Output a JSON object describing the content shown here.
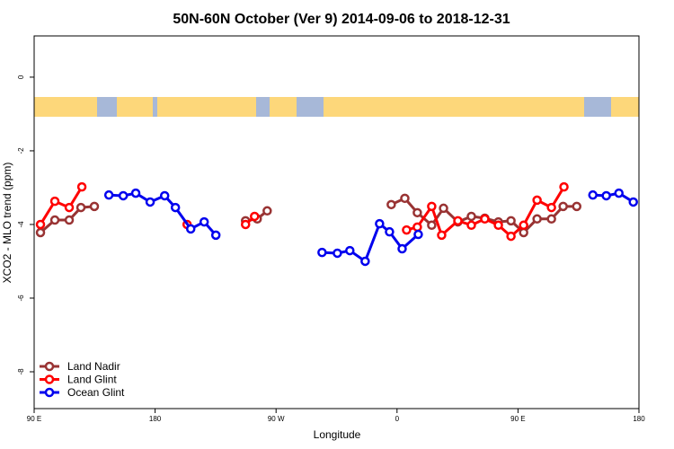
{
  "chart_data": {
    "type": "line",
    "title": "50N-60N October (Ver 9)   2014-09-06 to 2018-12-31",
    "x_label": "Longitude",
    "y_label": "XCO2 - MLO trend (ppm)",
    "xlim": [
      90,
      540
    ],
    "ylim": [
      -9,
      1.12
    ],
    "xticks": [
      {
        "value": 90,
        "label": "90 E"
      },
      180,
      {
        "value": 270,
        "label": "90 W"
      },
      {
        "value": 360,
        "label": "0"
      },
      {
        "value": 450,
        "label": "90 E"
      },
      {
        "value": 540,
        "label": "180"
      }
    ],
    "yticks": [
      0,
      -2,
      -4,
      -6,
      -8
    ],
    "legend": "bottom-left",
    "series": [
      {
        "name": "Land Nadir",
        "color": "#993333",
        "x": [
          94.7,
          105.4,
          116.1,
          124.8,
          134.8,
          null,
          247.3,
          256.0,
          263.4,
          null,
          355.7,
          365.8,
          375.1,
          385.8,
          394.6,
          405.3,
          415.3,
          425.3,
          435.4,
          444.8,
          454.2,
          464.2,
          474.9,
          483.6,
          493.7
        ],
        "values": [
          -4.22,
          -3.88,
          -3.88,
          -3.54,
          -3.51,
          null,
          -3.9,
          -3.85,
          -3.63,
          null,
          -3.46,
          -3.29,
          -3.68,
          -4.02,
          -3.56,
          -3.93,
          -3.78,
          -3.83,
          -3.93,
          -3.9,
          -4.22,
          -3.85,
          -3.85,
          -3.51,
          -3.51
        ]
      },
      {
        "name": "Land Glint",
        "color": "#ff0000",
        "x": [
          94.7,
          105.4,
          116.1,
          125.5,
          null,
          203.8,
          null,
          247.3,
          254.0,
          null,
          367.1,
          375.1,
          385.8,
          393.2,
          405.3,
          415.3,
          425.3,
          435.4,
          444.8,
          454.2,
          464.2,
          474.9,
          484.2
        ],
        "values": [
          -4.0,
          -3.37,
          -3.54,
          -2.98,
          null,
          -4.0,
          null,
          -4.0,
          -3.78,
          null,
          -4.15,
          -4.07,
          -3.51,
          -4.29,
          -3.9,
          -4.02,
          -3.85,
          -4.02,
          -4.32,
          -4.02,
          -3.34,
          -3.54,
          -2.98
        ]
      },
      {
        "name": "Ocean Glint",
        "color": "#0000ee",
        "x": [
          145.6,
          156.3,
          165.6,
          176.3,
          187.1,
          195.1,
          206.5,
          216.5,
          225.2,
          null,
          304.2,
          315.6,
          324.9,
          336.3,
          347.0,
          354.4,
          363.8,
          375.8,
          null,
          505.7,
          515.7,
          525.1,
          535.8
        ],
        "values": [
          -3.2,
          -3.22,
          -3.15,
          -3.39,
          -3.22,
          -3.54,
          -4.12,
          -3.93,
          -4.29,
          null,
          -4.76,
          -4.78,
          -4.71,
          -5.0,
          -3.98,
          -4.2,
          -4.66,
          -4.27,
          null,
          -3.2,
          -3.22,
          -3.15,
          -3.39
        ]
      }
    ]
  }
}
